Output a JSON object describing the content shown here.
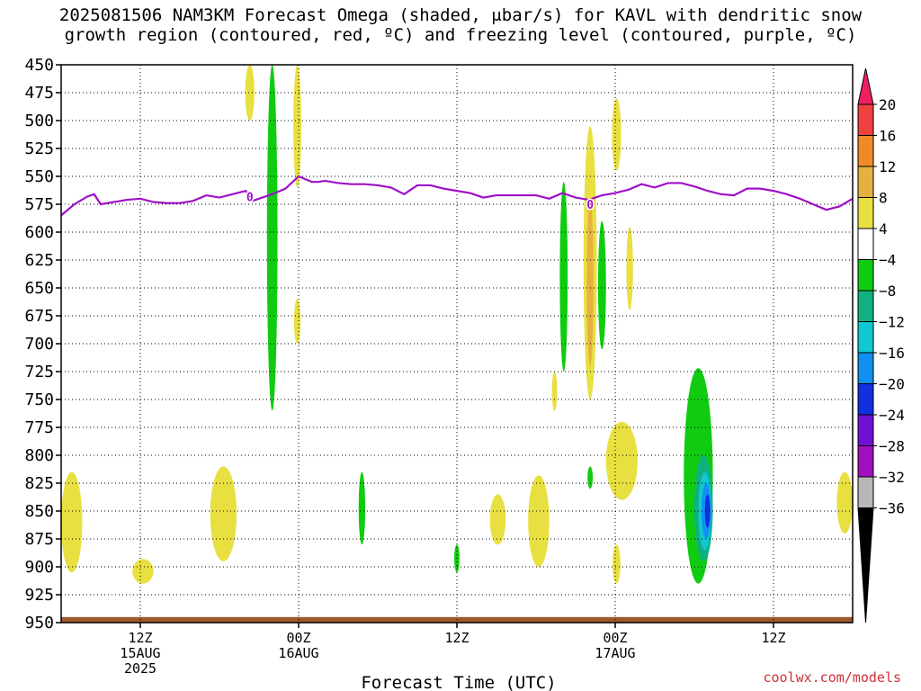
{
  "title": {
    "line1": "2025081506 NAM3KM Forecast Omega (shaded, μbar/s) for KAVL with dendritic snow",
    "line2": "growth region (contoured, red, ºC) and freezing level (contoured, purple, ºC)"
  },
  "credit": "coolwx.com/models",
  "chart_data": {
    "type": "heatmap",
    "xlabel": "Forecast Time (UTC)",
    "ylabel": "",
    "x_unit": "hours",
    "xlim": [
      6,
      66
    ],
    "ylim": [
      450,
      950
    ],
    "y_scale": "pressure (hPa), inverted",
    "grid": true,
    "x_ticks": [
      {
        "x": 12,
        "lines": [
          "12Z",
          "15AUG",
          "2025"
        ]
      },
      {
        "x": 24,
        "lines": [
          "00Z",
          "16AUG"
        ]
      },
      {
        "x": 36,
        "lines": [
          "12Z"
        ]
      },
      {
        "x": 48,
        "lines": [
          "00Z",
          "17AUG"
        ]
      },
      {
        "x": 60,
        "lines": [
          "12Z"
        ]
      }
    ],
    "y_ticks": [
      450,
      475,
      500,
      525,
      550,
      575,
      600,
      625,
      650,
      675,
      700,
      725,
      750,
      775,
      800,
      825,
      850,
      875,
      900,
      925,
      950
    ],
    "colorbar": {
      "levels": [
        "20",
        "16",
        "12",
        "8",
        "4",
        "−4",
        "−8",
        "−12",
        "−16",
        "−20",
        "−24",
        "−28",
        "−32",
        "−36"
      ],
      "colors": [
        "#f02060",
        "#f04040",
        "#f08a28",
        "#e8b040",
        "#e8e040",
        "#ffffff",
        "#10cc10",
        "#10b080",
        "#10c8d0",
        "#1090f0",
        "#1030e0",
        "#7010d0",
        "#a010c0",
        "#b8b8b8",
        "#000000"
      ]
    },
    "freezing_level": {
      "label": "0",
      "label_points": [
        [
          20.3,
          568
        ],
        [
          46.1,
          575
        ]
      ],
      "x": [
        6,
        7,
        8,
        8.5,
        9,
        10,
        11,
        12,
        13,
        14,
        15,
        16,
        17,
        18,
        19,
        20,
        20.5,
        21,
        22,
        23,
        24,
        25,
        25.5,
        26,
        27,
        28,
        29,
        30,
        31,
        32,
        33,
        34,
        35,
        36,
        37,
        38,
        39,
        40,
        41,
        42,
        43,
        44,
        45,
        46,
        47,
        48,
        49,
        50,
        51,
        52,
        53,
        54,
        55,
        56,
        57,
        58,
        59,
        60,
        61,
        62,
        63,
        64,
        65,
        66
      ],
      "y": [
        585,
        575,
        568,
        566,
        575,
        573,
        571,
        570,
        573,
        574,
        574,
        572,
        567,
        569,
        566,
        563,
        572,
        570,
        566,
        561,
        550,
        555,
        555,
        554,
        556,
        557,
        557,
        558,
        560,
        566,
        558,
        558,
        561,
        563,
        565,
        569,
        567,
        567,
        567,
        567,
        570,
        565,
        569,
        571,
        567,
        565,
        562,
        557,
        560,
        556,
        556,
        559,
        563,
        566,
        567,
        561,
        561,
        563,
        566,
        570,
        575,
        580,
        577,
        570
      ]
    },
    "ground_level_hpa": 945,
    "omega_regions": [
      {
        "value": 6,
        "x": 20.3,
        "x_half": 0.35,
        "p_top": 450,
        "p_bot": 500
      },
      {
        "value": 6,
        "x": 23.9,
        "x_half": 0.3,
        "p_top": 450,
        "p_bot": 560
      },
      {
        "value": 6,
        "x": 23.9,
        "x_half": 0.25,
        "p_top": 660,
        "p_bot": 700
      },
      {
        "value": -6,
        "x": 22.0,
        "x_half": 0.4,
        "p_top": 450,
        "p_bot": 760
      },
      {
        "value": -6,
        "x": 28.8,
        "x_half": 0.25,
        "p_top": 815,
        "p_bot": 880
      },
      {
        "value": -6,
        "x": 36.0,
        "x_half": 0.2,
        "p_top": 880,
        "p_bot": 905
      },
      {
        "value": 6,
        "x": 48.1,
        "x_half": 0.35,
        "p_top": 480,
        "p_bot": 545
      },
      {
        "value": 6,
        "x": 46.1,
        "x_half": 0.5,
        "p_top": 505,
        "p_bot": 750
      },
      {
        "value": 10,
        "x": 46.1,
        "x_half": 0.25,
        "p_top": 570,
        "p_bot": 720
      },
      {
        "value": -6,
        "x": 44.1,
        "x_half": 0.3,
        "p_top": 555,
        "p_bot": 725
      },
      {
        "value": -6,
        "x": 47.0,
        "x_half": 0.3,
        "p_top": 590,
        "p_bot": 705
      },
      {
        "value": 6,
        "x": 49.1,
        "x_half": 0.25,
        "p_top": 595,
        "p_bot": 670
      },
      {
        "value": 6,
        "x": 43.4,
        "x_half": 0.2,
        "p_top": 725,
        "p_bot": 760
      },
      {
        "value": -6,
        "x": 46.1,
        "x_half": 0.2,
        "p_top": 810,
        "p_bot": 830
      },
      {
        "value": 6,
        "x": 48.5,
        "x_half": 1.2,
        "p_top": 770,
        "p_bot": 840
      },
      {
        "value": 6,
        "x": 48.1,
        "x_half": 0.3,
        "p_top": 880,
        "p_bot": 915
      },
      {
        "value": 6,
        "x": 6.8,
        "x_half": 0.8,
        "p_top": 815,
        "p_bot": 905
      },
      {
        "value": 6,
        "x": 12.2,
        "x_half": 0.8,
        "p_top": 893,
        "p_bot": 915
      },
      {
        "value": 6,
        "x": 18.3,
        "x_half": 1.0,
        "p_top": 810,
        "p_bot": 895
      },
      {
        "value": 6,
        "x": 39.1,
        "x_half": 0.6,
        "p_top": 835,
        "p_bot": 880
      },
      {
        "value": 6,
        "x": 42.2,
        "x_half": 0.8,
        "p_top": 818,
        "p_bot": 900
      },
      {
        "value": 6,
        "x": 65.4,
        "x_half": 0.6,
        "p_top": 815,
        "p_bot": 870
      },
      {
        "value": -6,
        "x": 54.3,
        "x_half": 1.1,
        "p_top": 722,
        "p_bot": 915
      },
      {
        "value": -10,
        "x": 54.7,
        "x_half": 0.7,
        "p_top": 800,
        "p_bot": 895
      },
      {
        "value": -14,
        "x": 54.8,
        "x_half": 0.5,
        "p_top": 815,
        "p_bot": 885
      },
      {
        "value": -18,
        "x": 54.9,
        "x_half": 0.35,
        "p_top": 825,
        "p_bot": 875
      },
      {
        "value": -22,
        "x": 55.0,
        "x_half": 0.2,
        "p_top": 835,
        "p_bot": 865
      }
    ]
  }
}
